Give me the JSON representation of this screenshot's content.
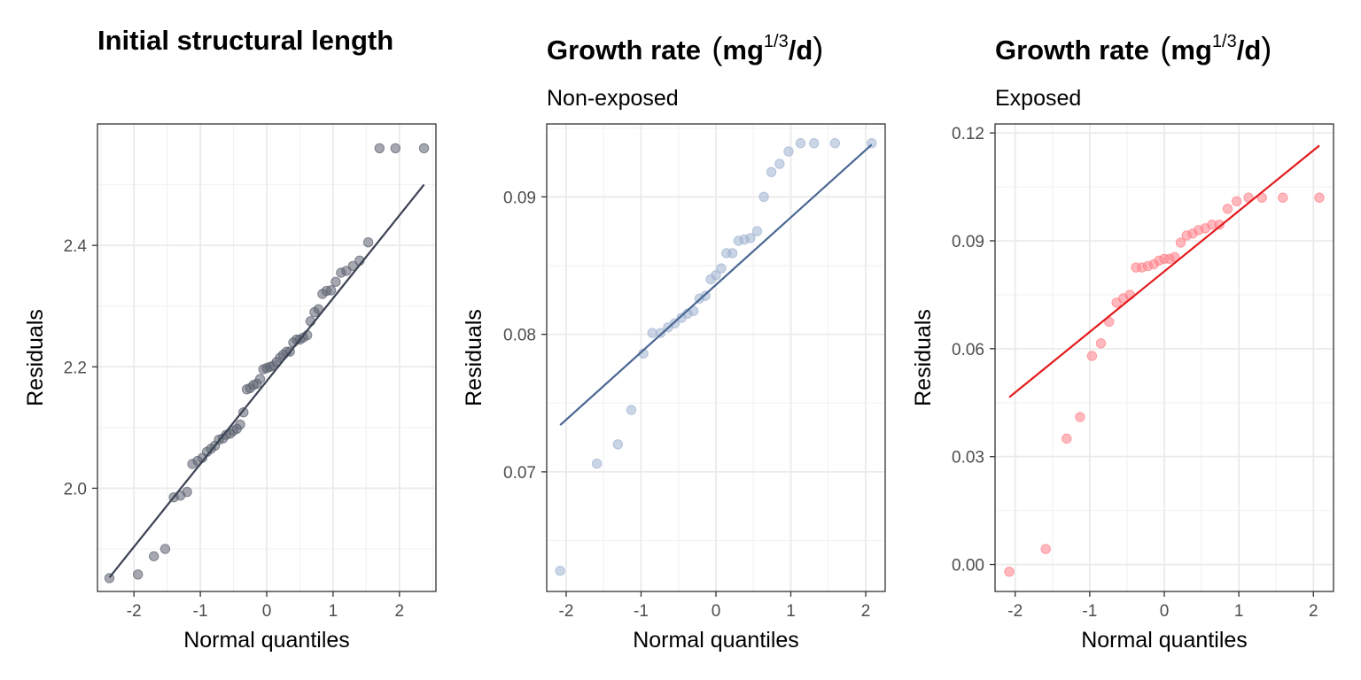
{
  "chart_data": [
    {
      "type": "scatter",
      "title": "Initial structural length",
      "subtitle": "",
      "xlabel": "Normal quantiles",
      "ylabel": "Residuals",
      "xlim": [
        -2.55,
        2.55
      ],
      "ylim": [
        1.83,
        2.6
      ],
      "x_ticks": [
        -2,
        -1,
        0,
        1,
        2
      ],
      "x_tick_labels": [
        "-2",
        "-1",
        "0",
        "1",
        "2"
      ],
      "y_ticks": [
        2.0,
        2.2,
        2.4
      ],
      "y_tick_labels": [
        "2.0",
        "2.2",
        "2.4"
      ],
      "point_color": "#5b6170",
      "line_color": "#3b4252",
      "fit_line": {
        "x": [
          -2.37,
          2.37
        ],
        "y": [
          1.853,
          2.5
        ]
      },
      "points": {
        "x": [
          -2.37,
          -1.94,
          -1.7,
          -1.53,
          -1.4,
          -1.3,
          -1.2,
          -1.12,
          -1.04,
          -0.97,
          -0.9,
          -0.84,
          -0.78,
          -0.72,
          -0.66,
          -0.61,
          -0.55,
          -0.5,
          -0.45,
          -0.4,
          -0.35,
          -0.3,
          -0.25,
          -0.2,
          -0.15,
          -0.1,
          -0.05,
          0.0,
          0.05,
          0.1,
          0.15,
          0.2,
          0.25,
          0.3,
          0.35,
          0.4,
          0.45,
          0.5,
          0.55,
          0.61,
          0.66,
          0.72,
          0.78,
          0.84,
          0.9,
          0.97,
          1.04,
          1.12,
          1.2,
          1.3,
          1.4,
          1.53,
          1.7,
          1.94,
          2.37
        ],
        "y": [
          1.852,
          1.858,
          1.888,
          1.9,
          1.985,
          1.988,
          1.994,
          2.04,
          2.045,
          2.05,
          2.06,
          2.065,
          2.07,
          2.08,
          2.082,
          2.088,
          2.09,
          2.095,
          2.098,
          2.105,
          2.125,
          2.163,
          2.165,
          2.17,
          2.172,
          2.18,
          2.196,
          2.198,
          2.2,
          2.202,
          2.208,
          2.215,
          2.22,
          2.225,
          2.225,
          2.24,
          2.245,
          2.245,
          2.248,
          2.252,
          2.275,
          2.29,
          2.295,
          2.32,
          2.325,
          2.326,
          2.34,
          2.355,
          2.358,
          2.366,
          2.375,
          2.405,
          2.56,
          2.56,
          2.56
        ]
      }
    },
    {
      "type": "scatter",
      "title": "Growth rate",
      "title_unit": {
        "base": "mg",
        "sup": "1/3",
        "tail": "/d"
      },
      "subtitle": "Non-exposed",
      "xlabel": "Normal quantiles",
      "ylabel": "Residuals",
      "xlim": [
        -2.26,
        2.26
      ],
      "ylim": [
        0.0613,
        0.0953
      ],
      "x_ticks": [
        -2,
        -1,
        0,
        1,
        2
      ],
      "x_tick_labels": [
        "-2",
        "-1",
        "0",
        "1",
        "2"
      ],
      "y_ticks": [
        0.07,
        0.08,
        0.09
      ],
      "y_tick_labels": [
        "0.07",
        "0.08",
        "0.09"
      ],
      "point_color": "#9fb2d0",
      "line_color": "#4a6793",
      "fit_line": {
        "x": [
          -2.08,
          2.08
        ],
        "y": [
          0.0734,
          0.0938
        ]
      },
      "points": {
        "x": [
          -2.08,
          -1.59,
          -1.31,
          -1.13,
          -0.97,
          -0.85,
          -0.74,
          -0.64,
          -0.55,
          -0.46,
          -0.38,
          -0.3,
          -0.22,
          -0.14,
          -0.07,
          0.0,
          0.07,
          0.14,
          0.22,
          0.3,
          0.38,
          0.46,
          0.55,
          0.64,
          0.74,
          0.85,
          0.97,
          1.13,
          1.31,
          1.59,
          2.08
        ],
        "y": [
          0.0628,
          0.0706,
          0.072,
          0.0745,
          0.0786,
          0.0801,
          0.0801,
          0.0805,
          0.0808,
          0.0812,
          0.0815,
          0.0817,
          0.0826,
          0.0828,
          0.084,
          0.0843,
          0.0848,
          0.0859,
          0.0859,
          0.0868,
          0.0869,
          0.087,
          0.0875,
          0.09,
          0.0918,
          0.0924,
          0.0933,
          0.0939,
          0.0939,
          0.0939,
          0.0939
        ]
      }
    },
    {
      "type": "scatter",
      "title": "Growth rate",
      "title_unit": {
        "base": "mg",
        "sup": "1/3",
        "tail": "/d"
      },
      "subtitle": "Exposed",
      "xlabel": "Normal quantiles",
      "ylabel": "Residuals",
      "xlim": [
        -2.27,
        2.27
      ],
      "ylim": [
        -0.0075,
        0.1225
      ],
      "x_ticks": [
        -2,
        -1,
        0,
        1,
        2
      ],
      "x_tick_labels": [
        "-2",
        "-1",
        "0",
        "1",
        "2"
      ],
      "y_ticks": [
        0.0,
        0.03,
        0.06,
        0.09,
        0.12
      ],
      "y_tick_labels": [
        "0.00",
        "0.03",
        "0.06",
        "0.09",
        "0.12"
      ],
      "point_color": "#ff7f88",
      "line_color": "#e31a1c",
      "fit_line": {
        "x": [
          -2.08,
          2.08
        ],
        "y": [
          0.0465,
          0.1165
        ]
      },
      "points": {
        "x": [
          -2.08,
          -1.59,
          -1.31,
          -1.13,
          -0.97,
          -0.85,
          -0.74,
          -0.64,
          -0.55,
          -0.46,
          -0.38,
          -0.3,
          -0.22,
          -0.14,
          -0.07,
          0.0,
          0.07,
          0.14,
          0.22,
          0.3,
          0.38,
          0.46,
          0.55,
          0.64,
          0.74,
          0.85,
          0.97,
          1.13,
          1.31,
          1.59,
          2.08
        ],
        "y": [
          -0.002,
          0.0043,
          0.035,
          0.041,
          0.058,
          0.0615,
          0.0675,
          0.0728,
          0.074,
          0.075,
          0.0826,
          0.0826,
          0.083,
          0.0835,
          0.0845,
          0.085,
          0.085,
          0.0855,
          0.0895,
          0.0915,
          0.092,
          0.093,
          0.0935,
          0.0945,
          0.0945,
          0.0989,
          0.101,
          0.102,
          0.102,
          0.102,
          0.102
        ]
      }
    }
  ]
}
